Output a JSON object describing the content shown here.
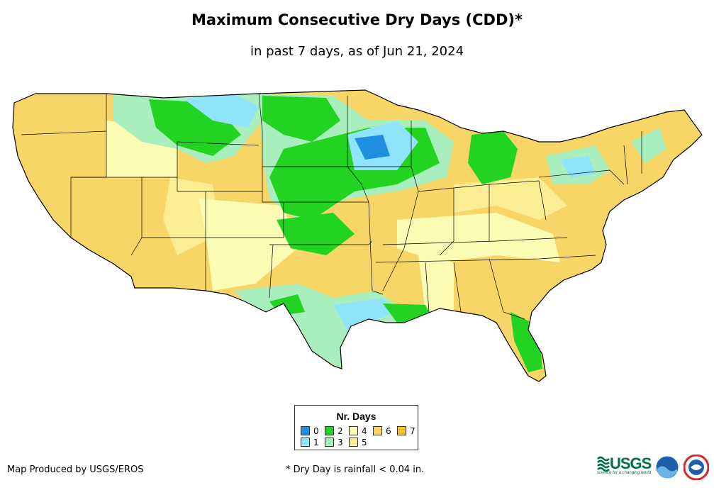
{
  "title": "Maximum Consecutive Dry Days (CDD)*",
  "subtitle": "in past 7 days, as of Jun 21, 2024",
  "legend": {
    "title": "Nr. Days",
    "items": [
      {
        "label": "0",
        "color": "#1f8fe0"
      },
      {
        "label": "1",
        "color": "#8fe4fb"
      },
      {
        "label": "2",
        "color": "#22d322"
      },
      {
        "label": "3",
        "color": "#a9efbe"
      },
      {
        "label": "4",
        "color": "#fbfbb4"
      },
      {
        "label": "5",
        "color": "#fbed93"
      },
      {
        "label": "6",
        "color": "#f7d566"
      },
      {
        "label": "7",
        "color": "#f8c22a"
      }
    ]
  },
  "footer": {
    "credit": "Map Produced by USGS/EROS",
    "note": "* Dry Day is rainfall < 0.04 in."
  },
  "logos": {
    "usgs": "USGS",
    "usgs_tagline": "science for a changing world",
    "noaa": "noaa",
    "nws": "NWS"
  }
}
